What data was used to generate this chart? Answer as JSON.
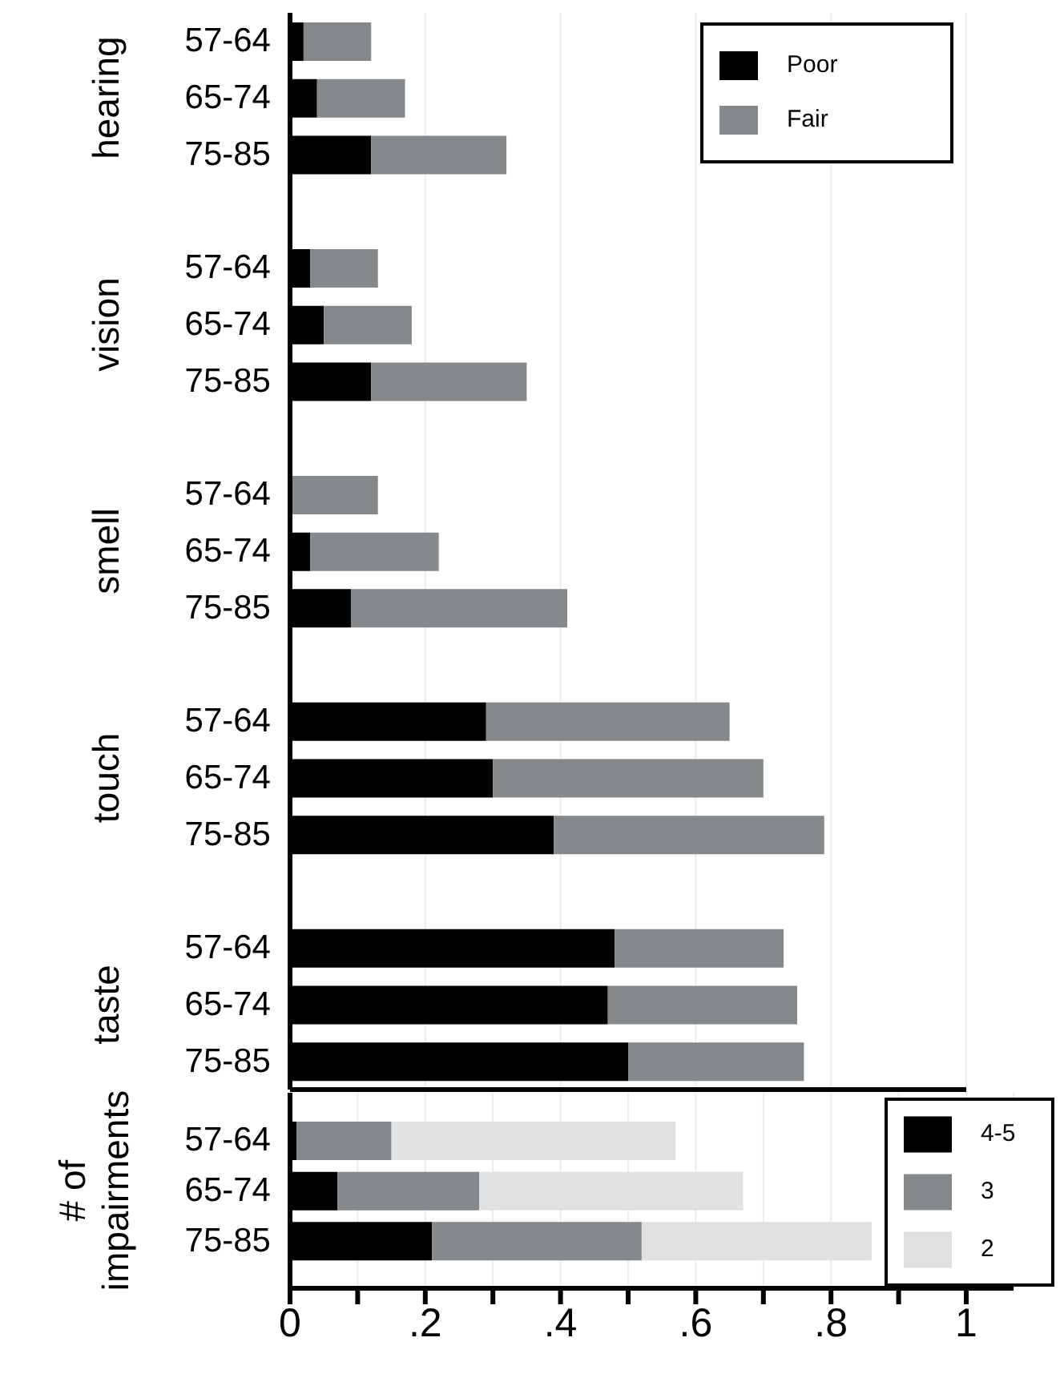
{
  "chart_data": [
    {
      "type": "bar",
      "orientation": "horizontal",
      "stacked": true,
      "categories": [
        "57-64",
        "65-74",
        "75-85",
        "57-64",
        "65-74",
        "75-85",
        "57-64",
        "65-74",
        "75-85",
        "57-64",
        "65-74",
        "75-85",
        "57-64",
        "65-74",
        "75-85"
      ],
      "annotations": [
        "hearing",
        "vision",
        "smell",
        "touch",
        "taste"
      ],
      "series": [
        {
          "name": "Poor",
          "color": "#000000",
          "values": [
            0.02,
            0.04,
            0.12,
            0.03,
            0.05,
            0.12,
            0.0,
            0.03,
            0.09,
            0.29,
            0.3,
            0.39,
            0.48,
            0.47,
            0.5
          ]
        },
        {
          "name": "Fair",
          "color": "#86898b",
          "values": [
            0.1,
            0.13,
            0.2,
            0.1,
            0.13,
            0.23,
            0.13,
            0.19,
            0.32,
            0.36,
            0.4,
            0.4,
            0.25,
            0.28,
            0.26
          ]
        }
      ],
      "xlim": [
        0,
        1
      ],
      "xticks": [
        0,
        0.2,
        0.4,
        0.6,
        0.8,
        1
      ],
      "tick_labels": "y",
      "grid": "x",
      "legend": "top right"
    },
    {
      "type": "bar",
      "orientation": "horizontal",
      "stacked": true,
      "ylabel": "# of impairments",
      "categories": [
        "57-64",
        "65-74",
        "75-85"
      ],
      "series": [
        {
          "name": "4-5",
          "color": "#000000",
          "values": [
            0.01,
            0.07,
            0.21
          ]
        },
        {
          "name": "3",
          "color": "#86898b",
          "values": [
            0.14,
            0.21,
            0.31
          ]
        },
        {
          "name": "2",
          "color": "#e0e1e2",
          "values": [
            0.42,
            0.39,
            0.34
          ]
        }
      ],
      "xlim": [
        0,
        1.07
      ],
      "xticks": [
        0,
        {
          "value": 0.1,
          "label": null
        },
        {
          "value": 0.2,
          "label": ".2"
        },
        {
          "value": 0.3,
          "label": null
        },
        {
          "value": 0.4,
          "label": ".4"
        },
        {
          "value": 0.5,
          "label": null
        },
        {
          "value": 0.6,
          "label": ".6"
        },
        {
          "value": 0.7,
          "label": null
        },
        {
          "value": 0.8,
          "label": ".8"
        },
        {
          "value": 0.9,
          "label": null
        },
        1
      ],
      "grid": "x",
      "legend": "bottom right"
    }
  ]
}
